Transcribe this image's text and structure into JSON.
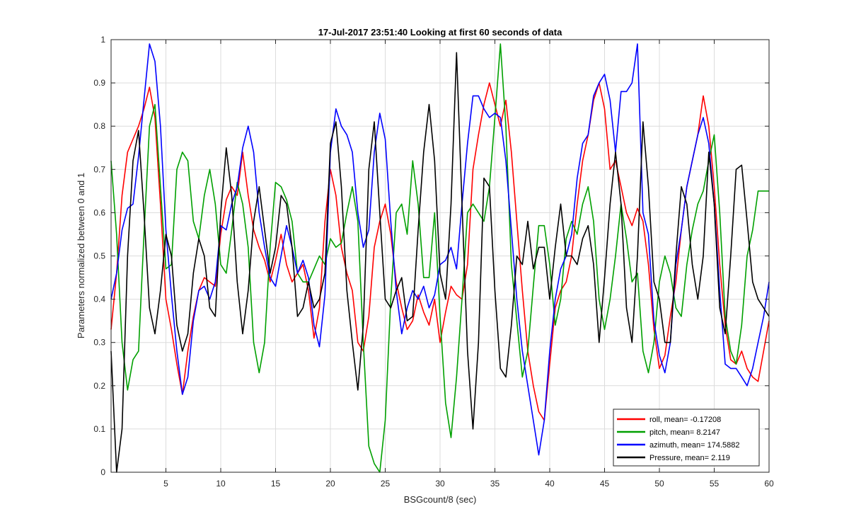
{
  "chart_data": {
    "type": "line",
    "title": "17-Jul-2017 23:51:40 Looking at first 60 seconds of data",
    "xlabel": "BSGcount/8 (sec)",
    "ylabel": "Parameters normalized between 0 and 1",
    "xlim": [
      0,
      60
    ],
    "ylim": [
      0,
      1
    ],
    "xticks": [
      5,
      10,
      15,
      20,
      25,
      30,
      35,
      40,
      45,
      50,
      55,
      60
    ],
    "yticks": [
      0,
      0.1,
      0.2,
      0.3,
      0.4,
      0.5,
      0.6,
      0.7,
      0.8,
      0.9,
      1
    ],
    "grid": true,
    "legend_position": "bottom-right",
    "series": [
      {
        "name": "roll, mean= -0.17208",
        "color": "#ff0000",
        "x": [
          0,
          0.5,
          1.0,
          1.5,
          2.0,
          2.5,
          3.0,
          3.5,
          4.0,
          4.5,
          5.0,
          5.5,
          6.0,
          6.5,
          7.0,
          7.5,
          8.0,
          8.5,
          9.0,
          9.5,
          10.0,
          10.5,
          11.0,
          11.5,
          12.0,
          12.5,
          13.0,
          13.5,
          14.0,
          14.5,
          15.0,
          15.5,
          16.0,
          16.5,
          17.0,
          17.5,
          18.0,
          18.5,
          19.0,
          19.5,
          20.0,
          20.5,
          21.0,
          21.5,
          22.0,
          22.5,
          23.0,
          23.5,
          24.0,
          24.5,
          25.0,
          25.5,
          26.0,
          26.5,
          27.0,
          27.5,
          28.0,
          28.5,
          29.0,
          29.5,
          30.0,
          30.5,
          31.0,
          31.5,
          32.0,
          32.5,
          33.0,
          33.5,
          34.0,
          34.5,
          35.0,
          35.5,
          36.0,
          36.5,
          37.0,
          37.5,
          38.0,
          38.5,
          39.0,
          39.5,
          40.0,
          40.5,
          41.0,
          41.5,
          42.0,
          42.5,
          43.0,
          43.5,
          44.0,
          44.5,
          45.0,
          45.5,
          46.0,
          46.5,
          47.0,
          47.5,
          48.0,
          48.5,
          49.0,
          49.5,
          50.0,
          50.5,
          51.0,
          51.5,
          52.0,
          52.5,
          53.0,
          53.5,
          54.0,
          54.5,
          55.0,
          55.5,
          56.0,
          56.5,
          57.0,
          57.5,
          58.0,
          58.5,
          59.0,
          59.5,
          60.0
        ],
        "y": [
          0.33,
          0.46,
          0.64,
          0.74,
          0.77,
          0.8,
          0.84,
          0.89,
          0.82,
          0.62,
          0.4,
          0.33,
          0.25,
          0.18,
          0.28,
          0.36,
          0.42,
          0.45,
          0.44,
          0.43,
          0.55,
          0.63,
          0.66,
          0.64,
          0.74,
          0.64,
          0.56,
          0.52,
          0.49,
          0.44,
          0.49,
          0.55,
          0.48,
          0.44,
          0.46,
          0.48,
          0.42,
          0.31,
          0.38,
          0.58,
          0.7,
          0.64,
          0.52,
          0.46,
          0.42,
          0.3,
          0.28,
          0.36,
          0.52,
          0.58,
          0.62,
          0.55,
          0.44,
          0.38,
          0.33,
          0.35,
          0.41,
          0.37,
          0.34,
          0.4,
          0.3,
          0.37,
          0.43,
          0.41,
          0.4,
          0.48,
          0.7,
          0.78,
          0.85,
          0.9,
          0.85,
          0.8,
          0.86,
          0.74,
          0.58,
          0.42,
          0.28,
          0.2,
          0.14,
          0.12,
          0.25,
          0.38,
          0.42,
          0.44,
          0.5,
          0.62,
          0.72,
          0.78,
          0.86,
          0.9,
          0.84,
          0.7,
          0.72,
          0.66,
          0.6,
          0.57,
          0.61,
          0.58,
          0.48,
          0.33,
          0.24,
          0.27,
          0.36,
          0.44,
          0.56,
          0.66,
          0.72,
          0.78,
          0.87,
          0.8,
          0.66,
          0.48,
          0.34,
          0.26,
          0.25,
          0.28,
          0.24,
          0.22,
          0.21,
          0.28,
          0.35
        ]
      },
      {
        "name": "pitch, mean= 8.2147",
        "color": "#00a000",
        "x": [
          0,
          0.5,
          1.0,
          1.5,
          2.0,
          2.5,
          3.0,
          3.5,
          4.0,
          4.5,
          5.0,
          5.5,
          6.0,
          6.5,
          7.0,
          7.5,
          8.0,
          8.5,
          9.0,
          9.5,
          10.0,
          10.5,
          11.0,
          11.5,
          12.0,
          12.5,
          13.0,
          13.5,
          14.0,
          14.5,
          15.0,
          15.5,
          16.0,
          16.5,
          17.0,
          17.5,
          18.0,
          18.5,
          19.0,
          19.5,
          20.0,
          20.5,
          21.0,
          21.5,
          22.0,
          22.5,
          23.0,
          23.5,
          24.0,
          24.5,
          25.0,
          25.5,
          26.0,
          26.5,
          27.0,
          27.5,
          28.0,
          28.5,
          29.0,
          29.5,
          30.0,
          30.5,
          31.0,
          31.5,
          32.0,
          32.5,
          33.0,
          33.5,
          34.0,
          34.5,
          35.0,
          35.5,
          36.0,
          36.5,
          37.0,
          37.5,
          38.0,
          38.5,
          39.0,
          39.5,
          40.0,
          40.5,
          41.0,
          41.5,
          42.0,
          42.5,
          43.0,
          43.5,
          44.0,
          44.5,
          45.0,
          45.5,
          46.0,
          46.5,
          47.0,
          47.5,
          48.0,
          48.5,
          49.0,
          49.5,
          50.0,
          50.5,
          51.0,
          51.5,
          52.0,
          52.5,
          53.0,
          53.5,
          54.0,
          54.5,
          55.0,
          55.5,
          56.0,
          56.5,
          57.0,
          57.5,
          58.0,
          58.5,
          59.0,
          59.5,
          60.0
        ],
        "y": [
          0.72,
          0.55,
          0.3,
          0.19,
          0.26,
          0.28,
          0.55,
          0.8,
          0.85,
          0.66,
          0.47,
          0.48,
          0.7,
          0.74,
          0.72,
          0.58,
          0.54,
          0.64,
          0.7,
          0.62,
          0.48,
          0.46,
          0.56,
          0.67,
          0.62,
          0.52,
          0.3,
          0.23,
          0.3,
          0.52,
          0.67,
          0.66,
          0.63,
          0.58,
          0.46,
          0.44,
          0.44,
          0.47,
          0.5,
          0.48,
          0.54,
          0.52,
          0.53,
          0.6,
          0.66,
          0.58,
          0.3,
          0.06,
          0.02,
          0.0,
          0.12,
          0.4,
          0.6,
          0.62,
          0.55,
          0.72,
          0.62,
          0.45,
          0.45,
          0.6,
          0.36,
          0.16,
          0.08,
          0.22,
          0.4,
          0.6,
          0.62,
          0.6,
          0.58,
          0.66,
          0.82,
          0.99,
          0.8,
          0.48,
          0.35,
          0.22,
          0.28,
          0.43,
          0.57,
          0.57,
          0.48,
          0.34,
          0.4,
          0.54,
          0.58,
          0.55,
          0.62,
          0.66,
          0.58,
          0.4,
          0.33,
          0.4,
          0.5,
          0.62,
          0.54,
          0.44,
          0.46,
          0.28,
          0.23,
          0.3,
          0.44,
          0.5,
          0.46,
          0.38,
          0.36,
          0.48,
          0.56,
          0.62,
          0.65,
          0.72,
          0.78,
          0.6,
          0.36,
          0.28,
          0.25,
          0.34,
          0.5,
          0.56,
          0.65,
          0.65,
          0.65
        ]
      },
      {
        "name": "azimuth, mean= 174.5882",
        "color": "#0000ff",
        "x": [
          0,
          0.5,
          1.0,
          1.5,
          2.0,
          2.5,
          3.0,
          3.5,
          4.0,
          4.5,
          5.0,
          5.5,
          6.0,
          6.5,
          7.0,
          7.5,
          8.0,
          8.5,
          9.0,
          9.5,
          10.0,
          10.5,
          11.0,
          11.5,
          12.0,
          12.5,
          13.0,
          13.5,
          14.0,
          14.5,
          15.0,
          15.5,
          16.0,
          16.5,
          17.0,
          17.5,
          18.0,
          18.5,
          19.0,
          19.5,
          20.0,
          20.5,
          21.0,
          21.5,
          22.0,
          22.5,
          23.0,
          23.5,
          24.0,
          24.5,
          25.0,
          25.5,
          26.0,
          26.5,
          27.0,
          27.5,
          28.0,
          28.5,
          29.0,
          29.5,
          30.0,
          30.5,
          31.0,
          31.5,
          32.0,
          32.5,
          33.0,
          33.5,
          34.0,
          34.5,
          35.0,
          35.5,
          36.0,
          36.5,
          37.0,
          37.5,
          38.0,
          38.5,
          39.0,
          39.5,
          40.0,
          40.5,
          41.0,
          41.5,
          42.0,
          42.5,
          43.0,
          43.5,
          44.0,
          44.5,
          45.0,
          45.5,
          46.0,
          46.5,
          47.0,
          47.5,
          48.0,
          48.5,
          49.0,
          49.5,
          50.0,
          50.5,
          51.0,
          51.5,
          52.0,
          52.5,
          53.0,
          53.5,
          54.0,
          54.5,
          55.0,
          55.5,
          56.0,
          56.5,
          57.0,
          57.5,
          58.0,
          58.5,
          59.0,
          59.5,
          60.0
        ],
        "y": [
          0.4,
          0.46,
          0.56,
          0.61,
          0.62,
          0.73,
          0.86,
          0.99,
          0.95,
          0.8,
          0.56,
          0.41,
          0.28,
          0.18,
          0.22,
          0.35,
          0.42,
          0.43,
          0.4,
          0.44,
          0.57,
          0.56,
          0.62,
          0.66,
          0.75,
          0.8,
          0.74,
          0.6,
          0.52,
          0.45,
          0.43,
          0.5,
          0.57,
          0.52,
          0.46,
          0.49,
          0.45,
          0.34,
          0.29,
          0.41,
          0.74,
          0.84,
          0.8,
          0.78,
          0.74,
          0.6,
          0.52,
          0.56,
          0.74,
          0.83,
          0.77,
          0.58,
          0.42,
          0.32,
          0.38,
          0.42,
          0.4,
          0.43,
          0.38,
          0.41,
          0.48,
          0.49,
          0.52,
          0.47,
          0.62,
          0.76,
          0.87,
          0.87,
          0.84,
          0.82,
          0.83,
          0.82,
          0.72,
          0.56,
          0.4,
          0.28,
          0.2,
          0.12,
          0.04,
          0.12,
          0.28,
          0.4,
          0.47,
          0.5,
          0.55,
          0.68,
          0.76,
          0.78,
          0.87,
          0.9,
          0.92,
          0.86,
          0.74,
          0.88,
          0.88,
          0.9,
          0.99,
          0.6,
          0.55,
          0.35,
          0.27,
          0.23,
          0.3,
          0.48,
          0.56,
          0.66,
          0.72,
          0.78,
          0.82,
          0.76,
          0.62,
          0.42,
          0.25,
          0.24,
          0.24,
          0.22,
          0.2,
          0.24,
          0.3,
          0.36,
          0.44
        ]
      },
      {
        "name": "Pressure, mean= 2.119",
        "color": "#000000",
        "x": [
          0,
          0.5,
          1.0,
          1.5,
          2.0,
          2.5,
          3.0,
          3.5,
          4.0,
          4.5,
          5.0,
          5.5,
          6.0,
          6.5,
          7.0,
          7.5,
          8.0,
          8.5,
          9.0,
          9.5,
          10.0,
          10.5,
          11.0,
          11.5,
          12.0,
          12.5,
          13.0,
          13.5,
          14.0,
          14.5,
          15.0,
          15.5,
          16.0,
          16.5,
          17.0,
          17.5,
          18.0,
          18.5,
          19.0,
          19.5,
          20.0,
          20.5,
          21.0,
          21.5,
          22.0,
          22.5,
          23.0,
          23.5,
          24.0,
          24.5,
          25.0,
          25.5,
          26.0,
          26.5,
          27.0,
          27.5,
          28.0,
          28.5,
          29.0,
          29.5,
          30.0,
          30.5,
          31.0,
          31.5,
          32.0,
          32.5,
          33.0,
          33.5,
          34.0,
          34.5,
          35.0,
          35.5,
          36.0,
          36.5,
          37.0,
          37.5,
          38.0,
          38.5,
          39.0,
          39.5,
          40.0,
          40.5,
          41.0,
          41.5,
          42.0,
          42.5,
          43.0,
          43.5,
          44.0,
          44.5,
          45.0,
          45.5,
          46.0,
          46.5,
          47.0,
          47.5,
          48.0,
          48.5,
          49.0,
          49.5,
          50.0,
          50.5,
          51.0,
          51.5,
          52.0,
          52.5,
          53.0,
          53.5,
          54.0,
          54.5,
          55.0,
          55.5,
          56.0,
          56.5,
          57.0,
          57.5,
          58.0,
          58.5,
          59.0,
          59.5,
          60.0
        ],
        "y": [
          0.28,
          0.0,
          0.1,
          0.5,
          0.72,
          0.79,
          0.6,
          0.38,
          0.32,
          0.42,
          0.55,
          0.5,
          0.34,
          0.28,
          0.32,
          0.46,
          0.54,
          0.5,
          0.38,
          0.36,
          0.6,
          0.75,
          0.64,
          0.44,
          0.32,
          0.42,
          0.58,
          0.66,
          0.56,
          0.46,
          0.52,
          0.64,
          0.62,
          0.52,
          0.36,
          0.38,
          0.44,
          0.38,
          0.4,
          0.46,
          0.76,
          0.81,
          0.66,
          0.42,
          0.3,
          0.19,
          0.34,
          0.7,
          0.81,
          0.6,
          0.4,
          0.38,
          0.42,
          0.45,
          0.35,
          0.36,
          0.56,
          0.74,
          0.85,
          0.72,
          0.46,
          0.4,
          0.62,
          0.97,
          0.62,
          0.28,
          0.1,
          0.3,
          0.68,
          0.66,
          0.42,
          0.24,
          0.22,
          0.34,
          0.5,
          0.48,
          0.58,
          0.47,
          0.52,
          0.52,
          0.4,
          0.52,
          0.62,
          0.5,
          0.5,
          0.48,
          0.54,
          0.57,
          0.48,
          0.3,
          0.45,
          0.62,
          0.74,
          0.62,
          0.38,
          0.3,
          0.5,
          0.81,
          0.66,
          0.44,
          0.4,
          0.3,
          0.3,
          0.5,
          0.66,
          0.62,
          0.48,
          0.4,
          0.5,
          0.74,
          0.62,
          0.38,
          0.32,
          0.5,
          0.7,
          0.71,
          0.58,
          0.44,
          0.4,
          0.38,
          0.36
        ]
      }
    ]
  }
}
